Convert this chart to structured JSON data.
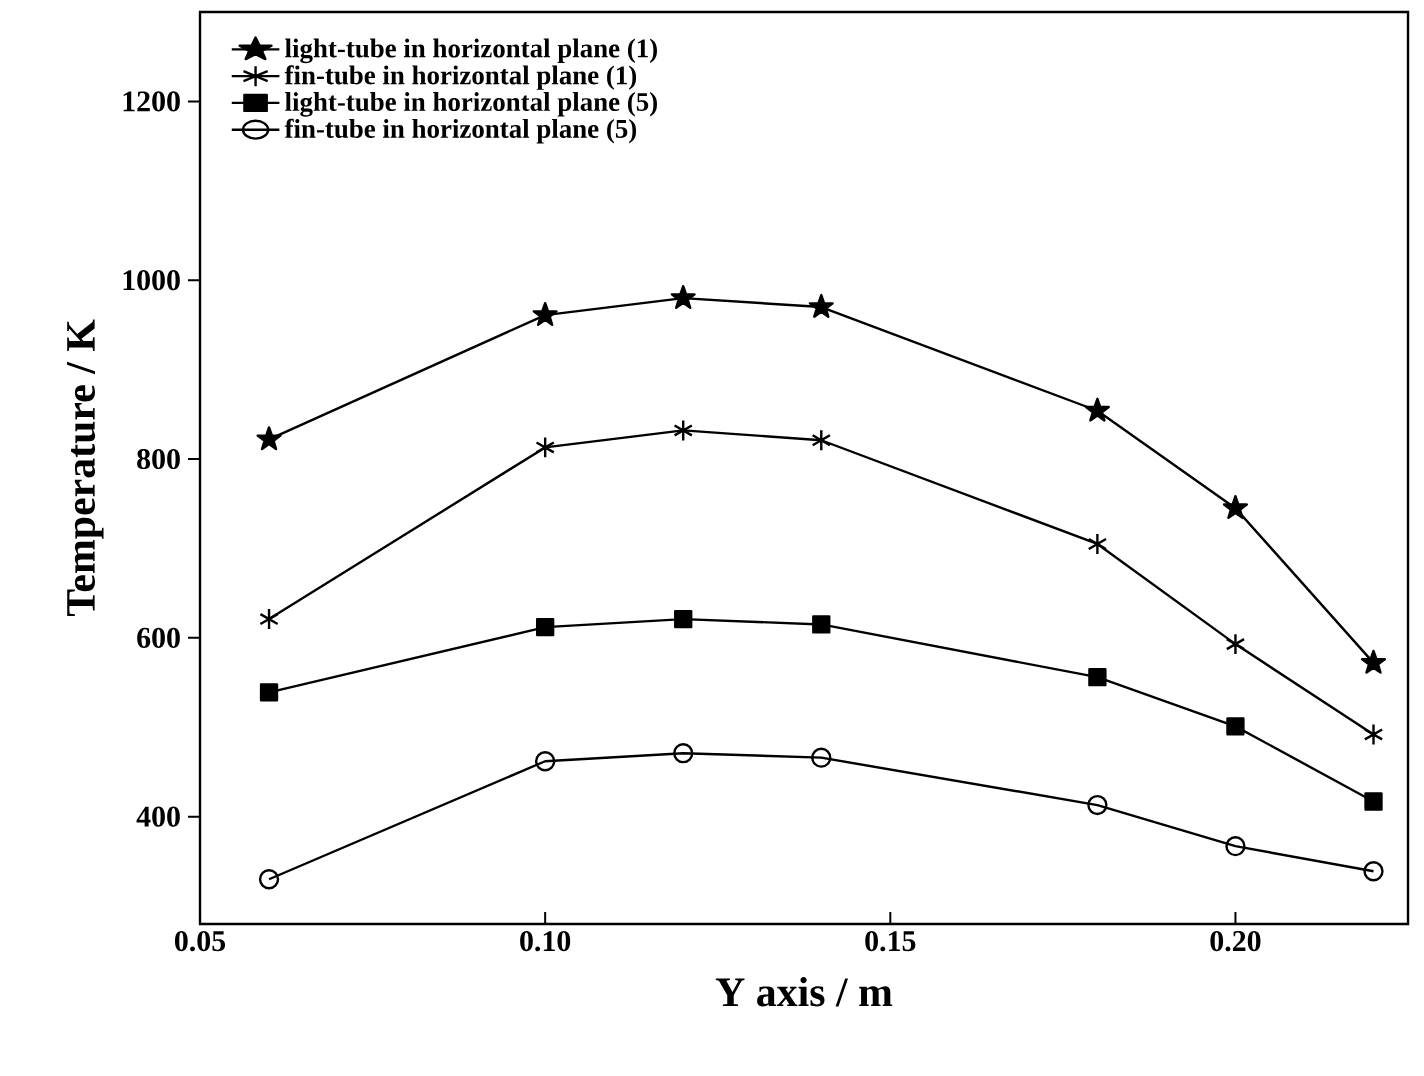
{
  "chart_data": {
    "type": "line",
    "xlabel": "Y axis / m",
    "ylabel": "Temperature / K",
    "x": [
      0.06,
      0.1,
      0.12,
      0.14,
      0.18,
      0.2,
      0.22
    ],
    "series": [
      {
        "name": "light-tube in horizontal plane (1)",
        "color": "#000000",
        "marker": "star",
        "values": [
          822,
          961,
          980,
          970,
          854,
          745,
          572
        ]
      },
      {
        "name": "fin-tube in horizontal plane (1)",
        "color": "#000000",
        "marker": "cross",
        "values": [
          621,
          813,
          832,
          821,
          705,
          593,
          492
        ]
      },
      {
        "name": "light-tube in horizontal plane (5)",
        "color": "#000000",
        "marker": "square",
        "values": [
          539,
          612,
          621,
          615,
          556,
          501,
          417
        ]
      },
      {
        "name": "fin-tube in horizontal plane (5)",
        "color": "#000000",
        "marker": "circle",
        "values": [
          330,
          462,
          471,
          466,
          413,
          367,
          339
        ]
      }
    ],
    "xlim": [
      0.05,
      0.225
    ],
    "ylim": [
      280,
      1300
    ],
    "xticks": [
      {
        "value": 0.05,
        "label": "0.05"
      },
      {
        "value": 0.1,
        "label": "0.10"
      },
      {
        "value": 0.15,
        "label": "0.15"
      },
      {
        "value": 0.2,
        "label": "0.20"
      }
    ],
    "yticks": [
      400,
      600,
      800,
      1000,
      1200
    ],
    "legend": "top left",
    "grid": false,
    "line_style": "solid"
  }
}
